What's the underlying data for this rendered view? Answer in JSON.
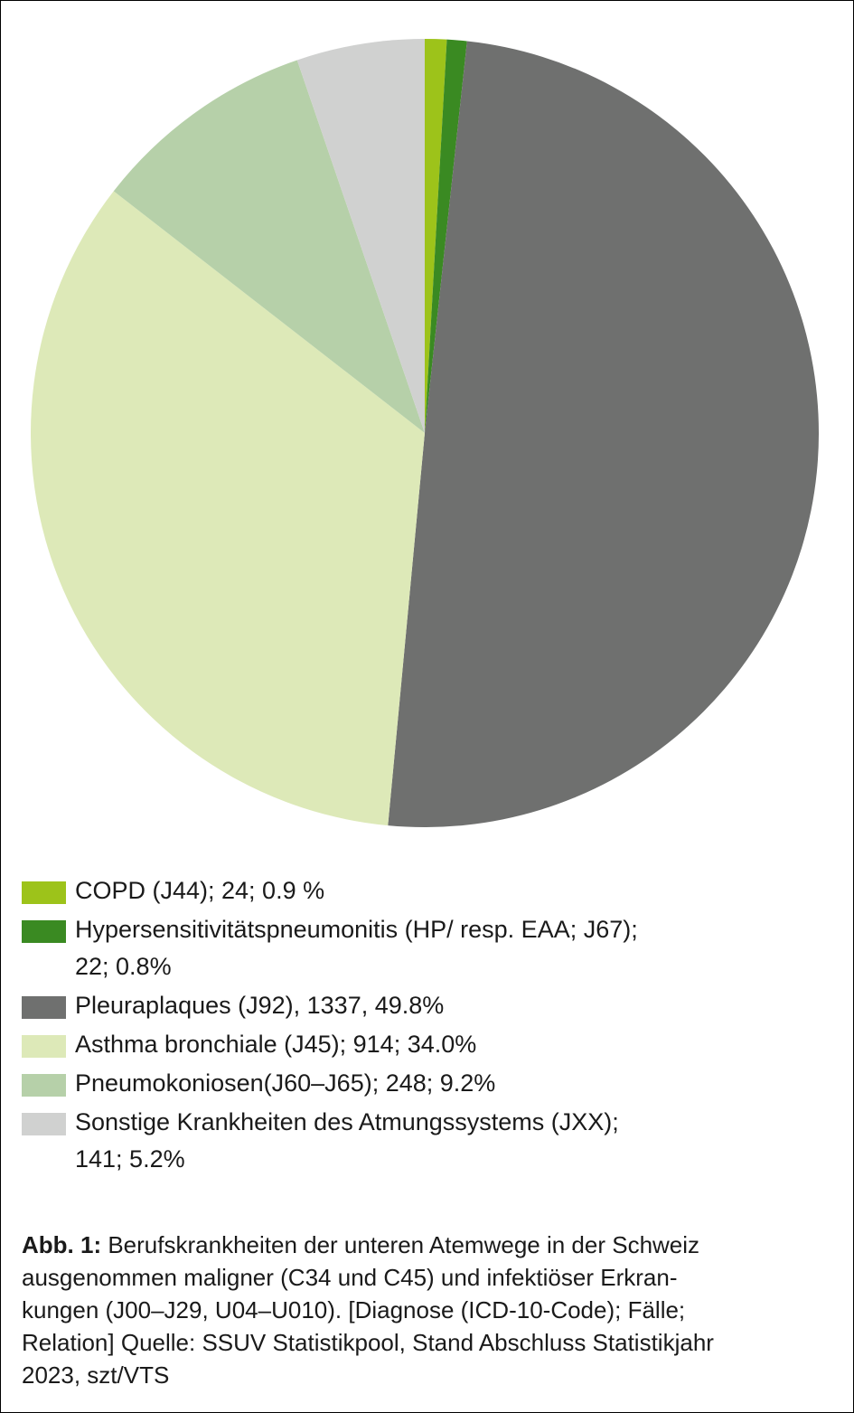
{
  "chart_data": {
    "type": "pie",
    "categories": [
      "COPD (J44); 24; 0.9 %",
      "Hypersensitivitätspneumonitis (HP/ resp. EAA; J67);\n22; 0.8%",
      "Pleuraplaques (J92), 1337, 49.8%",
      "Asthma bronchiale (J45); 914; 34.0%",
      "Pneumokoniosen(J60–J65); 248; 9.2%",
      "Sonstige Krankheiten des Atmungssystems (JXX);\n141; 5.2%"
    ],
    "values": [
      24,
      22,
      1337,
      914,
      248,
      141
    ],
    "colors": [
      "#9dc31a",
      "#3a8a22",
      "#6f706f",
      "#dde9b8",
      "#b6d0a9",
      "#d0d1d0"
    ],
    "caption_label": "Abb. 1:",
    "caption": "Berufskrankheiten der unteren Atemwege in der Schweiz\nausgenommen maligner (C34 und C45) und infektiöser Erkran-\nkungen (J00–J29, U04–U010). [Diagnose (ICD-10-Code); Fälle;\nRelation] Quelle: SSUV Statistikpool, Stand Abschluss Statistikjahr\n2023, szt/VTS"
  }
}
